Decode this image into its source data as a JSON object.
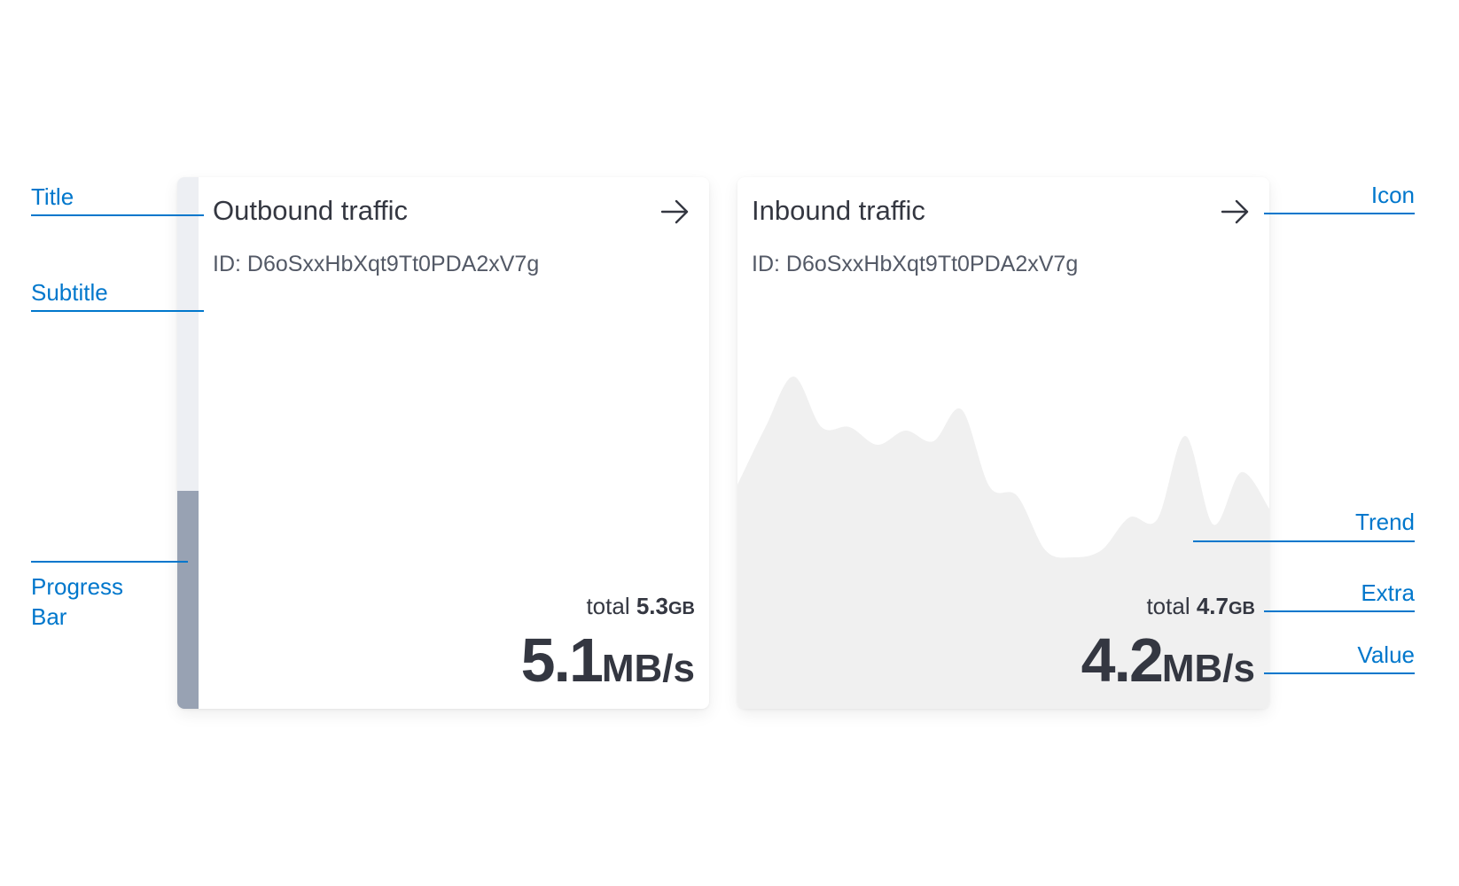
{
  "annotations": {
    "title": "Title",
    "subtitle": "Subtitle",
    "progress_bar": [
      "Progress",
      "Bar"
    ],
    "icon": "Icon",
    "trend": "Trend",
    "extra": "Extra",
    "value": "Value"
  },
  "colors": {
    "annotation": "#0077cc",
    "text": "#343741",
    "progress_track": "#edeff3",
    "progress_fill": "#98a2b3",
    "trend_fill": "#f0f0f0"
  },
  "cards": [
    {
      "title": "Outbound traffic",
      "subtitle": "ID: D6oSxxHbXqt9Tt0PDA2xV7g",
      "icon": "arrow-right-icon",
      "extra_label": "total",
      "extra_value": "5.3",
      "extra_unit": "GB",
      "value": "5.1",
      "unit": "MB/s",
      "progress_percent": 41
    },
    {
      "title": "Inbound traffic",
      "subtitle": "ID: D6oSxxHbXqt9Tt0PDA2xV7g",
      "icon": "arrow-right-icon",
      "extra_label": "total",
      "extra_value": "4.7",
      "extra_unit": "GB",
      "value": "4.2",
      "unit": "MB/s",
      "trend": [
        253,
        318,
        375,
        318,
        318,
        298,
        314,
        302,
        338,
        251,
        240,
        179,
        171,
        179,
        216,
        214,
        308,
        208,
        267,
        226
      ]
    }
  ]
}
